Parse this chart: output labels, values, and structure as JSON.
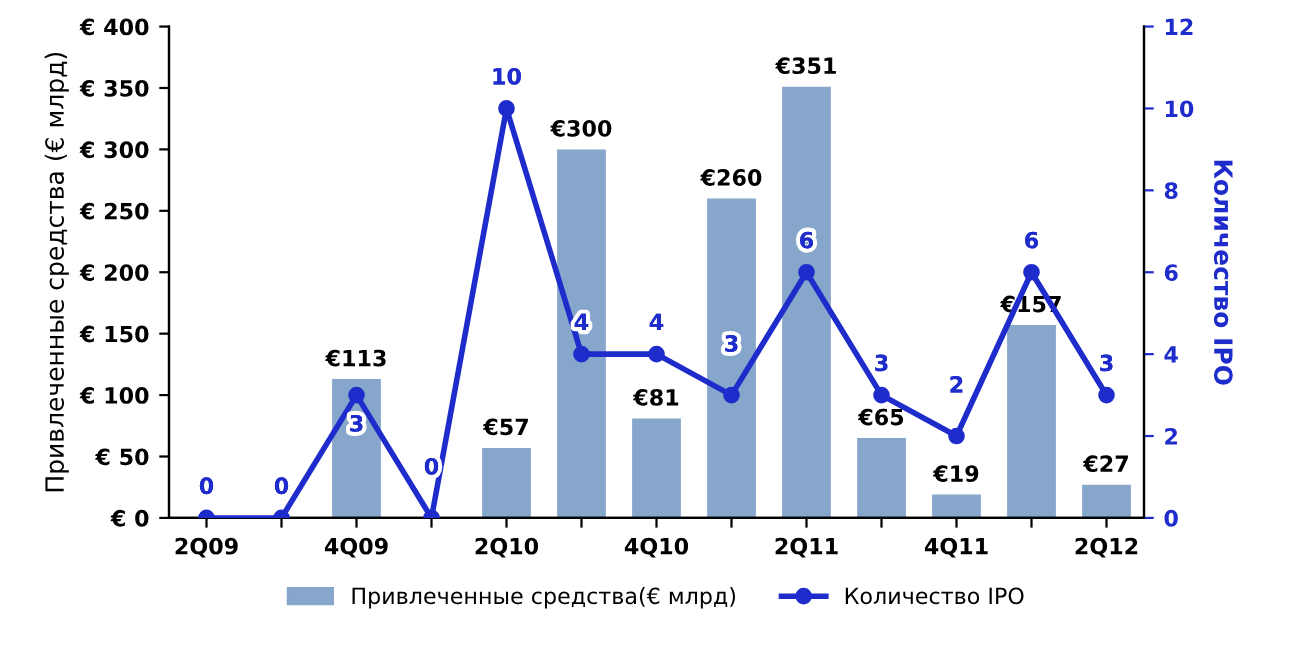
{
  "chart_data": {
    "type": "bar",
    "categories": [
      "2Q09",
      null,
      "4Q09",
      null,
      "2Q10",
      null,
      "4Q10",
      null,
      "2Q11",
      null,
      "4Q11",
      null,
      "2Q12"
    ],
    "series": [
      {
        "name": "Привлеченные средства(€ млрд)",
        "color": "#86a6cb",
        "values": [
          0,
          0,
          113,
          0,
          57,
          300,
          81,
          260,
          351,
          65,
          19,
          157,
          27
        ],
        "value_labels": [
          null,
          null,
          "€113",
          null,
          "€57",
          "€300",
          "€81",
          "€260",
          "€351",
          "€65",
          "€19",
          "€157",
          "€27"
        ]
      },
      {
        "name": "Количество IPO",
        "type": "line",
        "axis": "y2",
        "color": "#1f2ccc",
        "marker": "circle",
        "values": [
          0,
          0,
          3,
          0,
          10,
          4,
          4,
          3,
          6,
          3,
          2,
          6,
          3
        ],
        "value_labels": [
          "0",
          "0",
          "3",
          "0",
          "10",
          "4",
          "4",
          "3",
          "6",
          "3",
          "2",
          "6",
          "3"
        ]
      }
    ],
    "ylabel": "Привлеченные средства (€ млрд)",
    "y2label": "Количество IPO",
    "ylim": [
      0,
      400
    ],
    "yticks": [
      {
        "value": 0,
        "label": "€ 0"
      },
      {
        "value": 50,
        "label": "€ 50"
      },
      {
        "value": 100,
        "label": "€ 100"
      },
      {
        "value": 150,
        "label": "€ 150"
      },
      {
        "value": 200,
        "label": "€ 200"
      },
      {
        "value": 250,
        "label": "€ 250"
      },
      {
        "value": 300,
        "label": "€ 300"
      },
      {
        "value": 350,
        "label": "€ 350"
      },
      {
        "value": 400,
        "label": "€ 400"
      }
    ],
    "y2lim": [
      0,
      12
    ],
    "y2ticks": [
      0,
      2,
      4,
      6,
      8,
      10,
      12
    ],
    "legend": "bottom"
  }
}
